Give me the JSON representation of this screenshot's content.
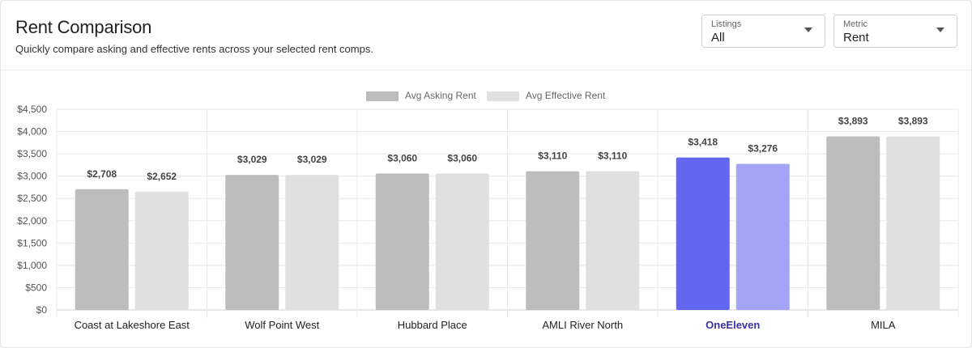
{
  "header": {
    "title": "Rent Comparison",
    "subtitle": "Quickly compare asking and effective rents across your selected rent comps."
  },
  "filters": {
    "listings": {
      "label": "Listings",
      "value": "All"
    },
    "metric": {
      "label": "Metric",
      "value": "Rent"
    }
  },
  "colors": {
    "asking": "#bdbdbd",
    "effective": "#e0e0e0",
    "highlight_asking": "#6366f1",
    "highlight_effective": "#a3a4f5",
    "highlight_label": "#3730a3"
  },
  "chart_data": {
    "type": "bar",
    "categories": [
      "Coast at Lakeshore East",
      "Wolf Point West",
      "Hubbard Place",
      "AMLI River North",
      "OneEleven",
      "MILA"
    ],
    "highlight_category": "OneEleven",
    "series": [
      {
        "name": "Avg Asking Rent",
        "values": [
          2708,
          3029,
          3060,
          3110,
          3418,
          3893
        ]
      },
      {
        "name": "Avg Effective Rent",
        "values": [
          2652,
          3029,
          3060,
          3110,
          3276,
          3893
        ]
      }
    ],
    "data_labels": [
      [
        "$2,708",
        "$3,029",
        "$3,060",
        "$3,110",
        "$3,418",
        "$3,893"
      ],
      [
        "$2,652",
        "$3,029",
        "$3,060",
        "$3,110",
        "$3,276",
        "$3,893"
      ]
    ],
    "yticks": [
      "$0",
      "$500",
      "$1,000",
      "$1,500",
      "$2,000",
      "$2,500",
      "$3,000",
      "$3,500",
      "$4,000",
      "$4,500"
    ],
    "ylim": [
      0,
      4500
    ],
    "grid": true,
    "legend": "top-center"
  }
}
